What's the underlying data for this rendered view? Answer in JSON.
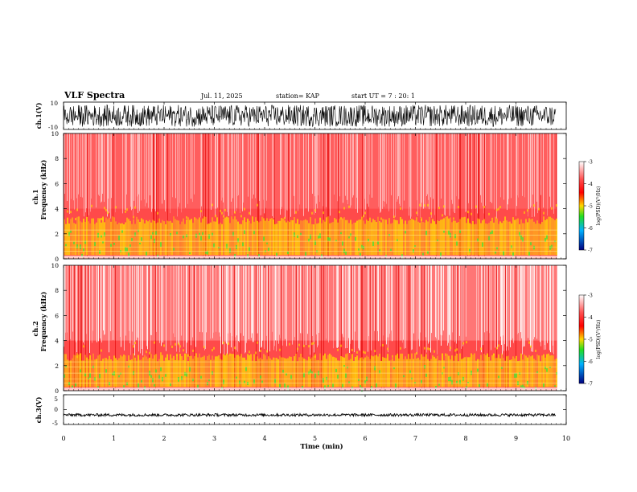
{
  "header": {
    "title": "VLF Spectra",
    "date": "Jul. 11, 2025",
    "station": "station= KAP",
    "start": "start UT =  7 : 20: 1"
  },
  "colors": {
    "bg_high": "#ff2a2a",
    "bg_low": "#ffffff",
    "band": "#ffe000",
    "band_green": "#39e639"
  },
  "chart_data": [
    {
      "type": "line",
      "id": "ch1_waveform",
      "ylabel": "ch.1(V)",
      "ylim": [
        -10,
        10
      ],
      "yticks": [
        "10",
        "-10"
      ],
      "x_range_min": [
        0,
        9.8
      ],
      "description_value": "broadband noise amplitude roughly -8 to 8 V"
    },
    {
      "type": "heatmap",
      "id": "ch1_spectrogram",
      "ylabel": "ch.1\nFrequency (kHz)",
      "ylabel_lines": [
        "ch.1",
        "Frequency (kHz)"
      ],
      "ylim": [
        0,
        10
      ],
      "yticks": [
        "0",
        "2",
        "4",
        "6",
        "8",
        "10"
      ],
      "colorbar": {
        "label": "log(PSD)(V²/Hz)",
        "ticks": [
          "-3",
          "-4",
          "-5",
          "-6",
          "-7"
        ],
        "range": [
          -7,
          -3
        ]
      },
      "band_kHz": [
        0.3,
        3.2
      ]
    },
    {
      "type": "heatmap",
      "id": "ch2_spectrogram",
      "ylabel_lines": [
        "ch.2",
        "Frequency (kHz)"
      ],
      "ylim": [
        0,
        10
      ],
      "yticks": [
        "0",
        "2",
        "4",
        "6",
        "8",
        "10"
      ],
      "colorbar": {
        "label": "log(PSD)(V²/Hz)",
        "ticks": [
          "-3",
          "-4",
          "-5",
          "-6",
          "-7"
        ],
        "range": [
          -7,
          -3
        ]
      },
      "band_kHz": [
        0.3,
        2.8
      ]
    },
    {
      "type": "line",
      "id": "ch3_waveform",
      "ylabel": "ch.3(V)",
      "ylim": [
        -5,
        5
      ],
      "yticks": [
        "5",
        "0",
        "-5"
      ],
      "x_range_min": [
        0,
        9.8
      ],
      "description_value": "steady amplitude near -1.8 V"
    }
  ],
  "xaxis": {
    "label": "Time (min)",
    "ticks": [
      "0",
      "1",
      "2",
      "3",
      "4",
      "5",
      "6",
      "7",
      "8",
      "9",
      "10"
    ],
    "xlim": [
      0,
      10
    ]
  }
}
